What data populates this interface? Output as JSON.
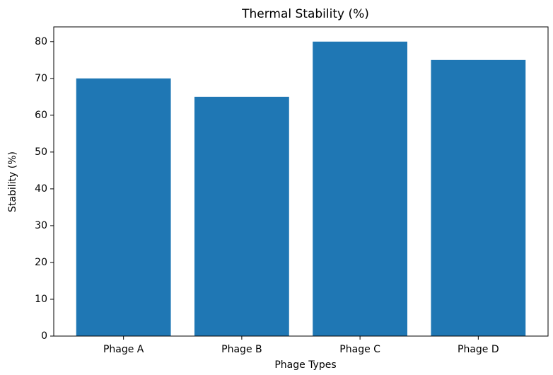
{
  "chart_data": {
    "type": "bar",
    "title": "Thermal Stability (%)",
    "xlabel": "Phage Types",
    "ylabel": "Stability (%)",
    "categories": [
      "Phage A",
      "Phage B",
      "Phage C",
      "Phage D"
    ],
    "values": [
      70,
      65,
      80,
      75
    ],
    "color": "#1f77b4",
    "ylim": [
      0,
      84
    ],
    "yticks": [
      0,
      10,
      20,
      30,
      40,
      50,
      60,
      70,
      80
    ],
    "grid": false
  }
}
